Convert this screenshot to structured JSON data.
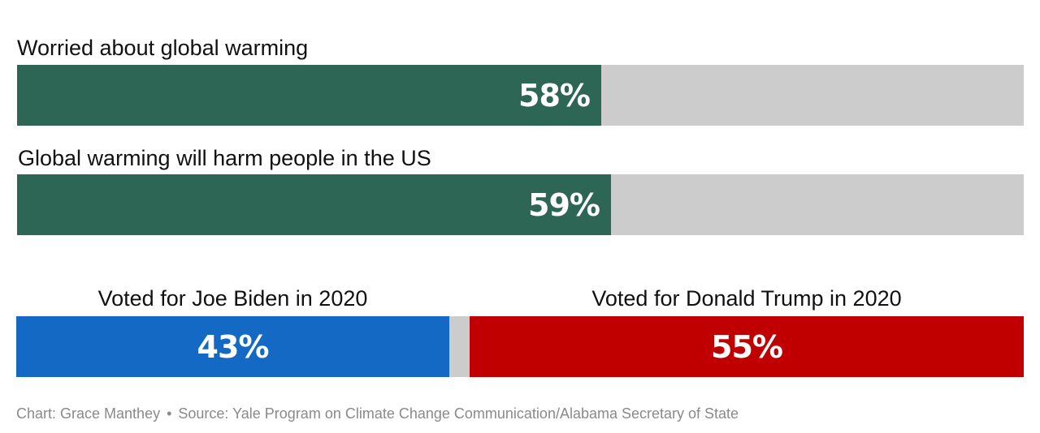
{
  "chart_data": {
    "type": "bar",
    "orientation": "horizontal",
    "xlim": [
      0,
      100
    ],
    "grid": false,
    "colors": {
      "fill": "#2e6656",
      "track": "#cccccc",
      "biden": "#1469c4",
      "trump": "#c00000"
    },
    "rows": [
      {
        "label": "Worried about global warming",
        "value": 58,
        "value_label": "58%"
      },
      {
        "label": "Global warming will harm people in the US",
        "value": 59,
        "value_label": "59%"
      }
    ],
    "vote": {
      "segments": [
        {
          "label": "Voted for Joe Biden in 2020",
          "value": 43,
          "value_label": "43%"
        },
        {
          "label": "Voted for Donald Trump in 2020",
          "value": 55,
          "value_label": "55%"
        }
      ]
    }
  },
  "footer": {
    "credit": "Chart: Grace Manthey",
    "separator": "•",
    "source": "Source: Yale Program on Climate Change Communication/Alabama Secretary of State"
  }
}
